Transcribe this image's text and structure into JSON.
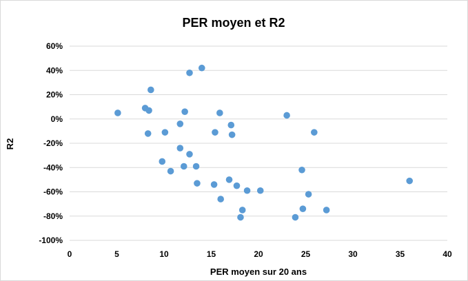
{
  "chart_data": {
    "type": "scatter",
    "title": "PER moyen et R2",
    "xlabel": "PER moyen sur 20 ans",
    "ylabel": "R2",
    "xlim": [
      0,
      40
    ],
    "ylim": [
      -100,
      60
    ],
    "x_ticks": [
      0,
      5,
      10,
      15,
      20,
      25,
      30,
      35,
      40
    ],
    "x_tick_labels": [
      "0",
      "5",
      "10",
      "15",
      "20",
      "25",
      "30",
      "35",
      "40"
    ],
    "y_ticks": [
      60,
      40,
      20,
      0,
      -20,
      -40,
      -60,
      -80,
      -100
    ],
    "y_tick_labels": [
      "60%",
      "40%",
      "20%",
      "0%",
      "-20%",
      "-40%",
      "-60%",
      "-80%",
      "-100%"
    ],
    "grid": "horizontal",
    "legend": "none",
    "marker_color": "#5b9bd5",
    "series": [
      {
        "points": [
          {
            "x": 5.1,
            "y": 5
          },
          {
            "x": 8.0,
            "y": 9
          },
          {
            "x": 8.4,
            "y": 7
          },
          {
            "x": 8.6,
            "y": 24
          },
          {
            "x": 8.3,
            "y": -12
          },
          {
            "x": 10.1,
            "y": -11
          },
          {
            "x": 9.8,
            "y": -35
          },
          {
            "x": 10.7,
            "y": -43
          },
          {
            "x": 11.7,
            "y": -4
          },
          {
            "x": 11.7,
            "y": -24
          },
          {
            "x": 12.2,
            "y": 6
          },
          {
            "x": 12.1,
            "y": -39
          },
          {
            "x": 12.7,
            "y": 38
          },
          {
            "x": 12.7,
            "y": -29
          },
          {
            "x": 13.4,
            "y": -39
          },
          {
            "x": 13.5,
            "y": -53
          },
          {
            "x": 14.0,
            "y": 42
          },
          {
            "x": 15.3,
            "y": -54
          },
          {
            "x": 15.4,
            "y": -11
          },
          {
            "x": 15.9,
            "y": 5
          },
          {
            "x": 16.0,
            "y": -66
          },
          {
            "x": 16.9,
            "y": -50
          },
          {
            "x": 17.1,
            "y": -5
          },
          {
            "x": 17.2,
            "y": -13
          },
          {
            "x": 17.7,
            "y": -55
          },
          {
            "x": 18.1,
            "y": -81
          },
          {
            "x": 18.3,
            "y": -75
          },
          {
            "x": 18.8,
            "y": -59
          },
          {
            "x": 20.2,
            "y": -59
          },
          {
            "x": 23.0,
            "y": 3
          },
          {
            "x": 23.9,
            "y": -81
          },
          {
            "x": 24.6,
            "y": -42
          },
          {
            "x": 24.7,
            "y": -74
          },
          {
            "x": 25.3,
            "y": -62
          },
          {
            "x": 25.9,
            "y": -11
          },
          {
            "x": 27.2,
            "y": -75
          },
          {
            "x": 36.0,
            "y": -51
          }
        ]
      }
    ]
  }
}
